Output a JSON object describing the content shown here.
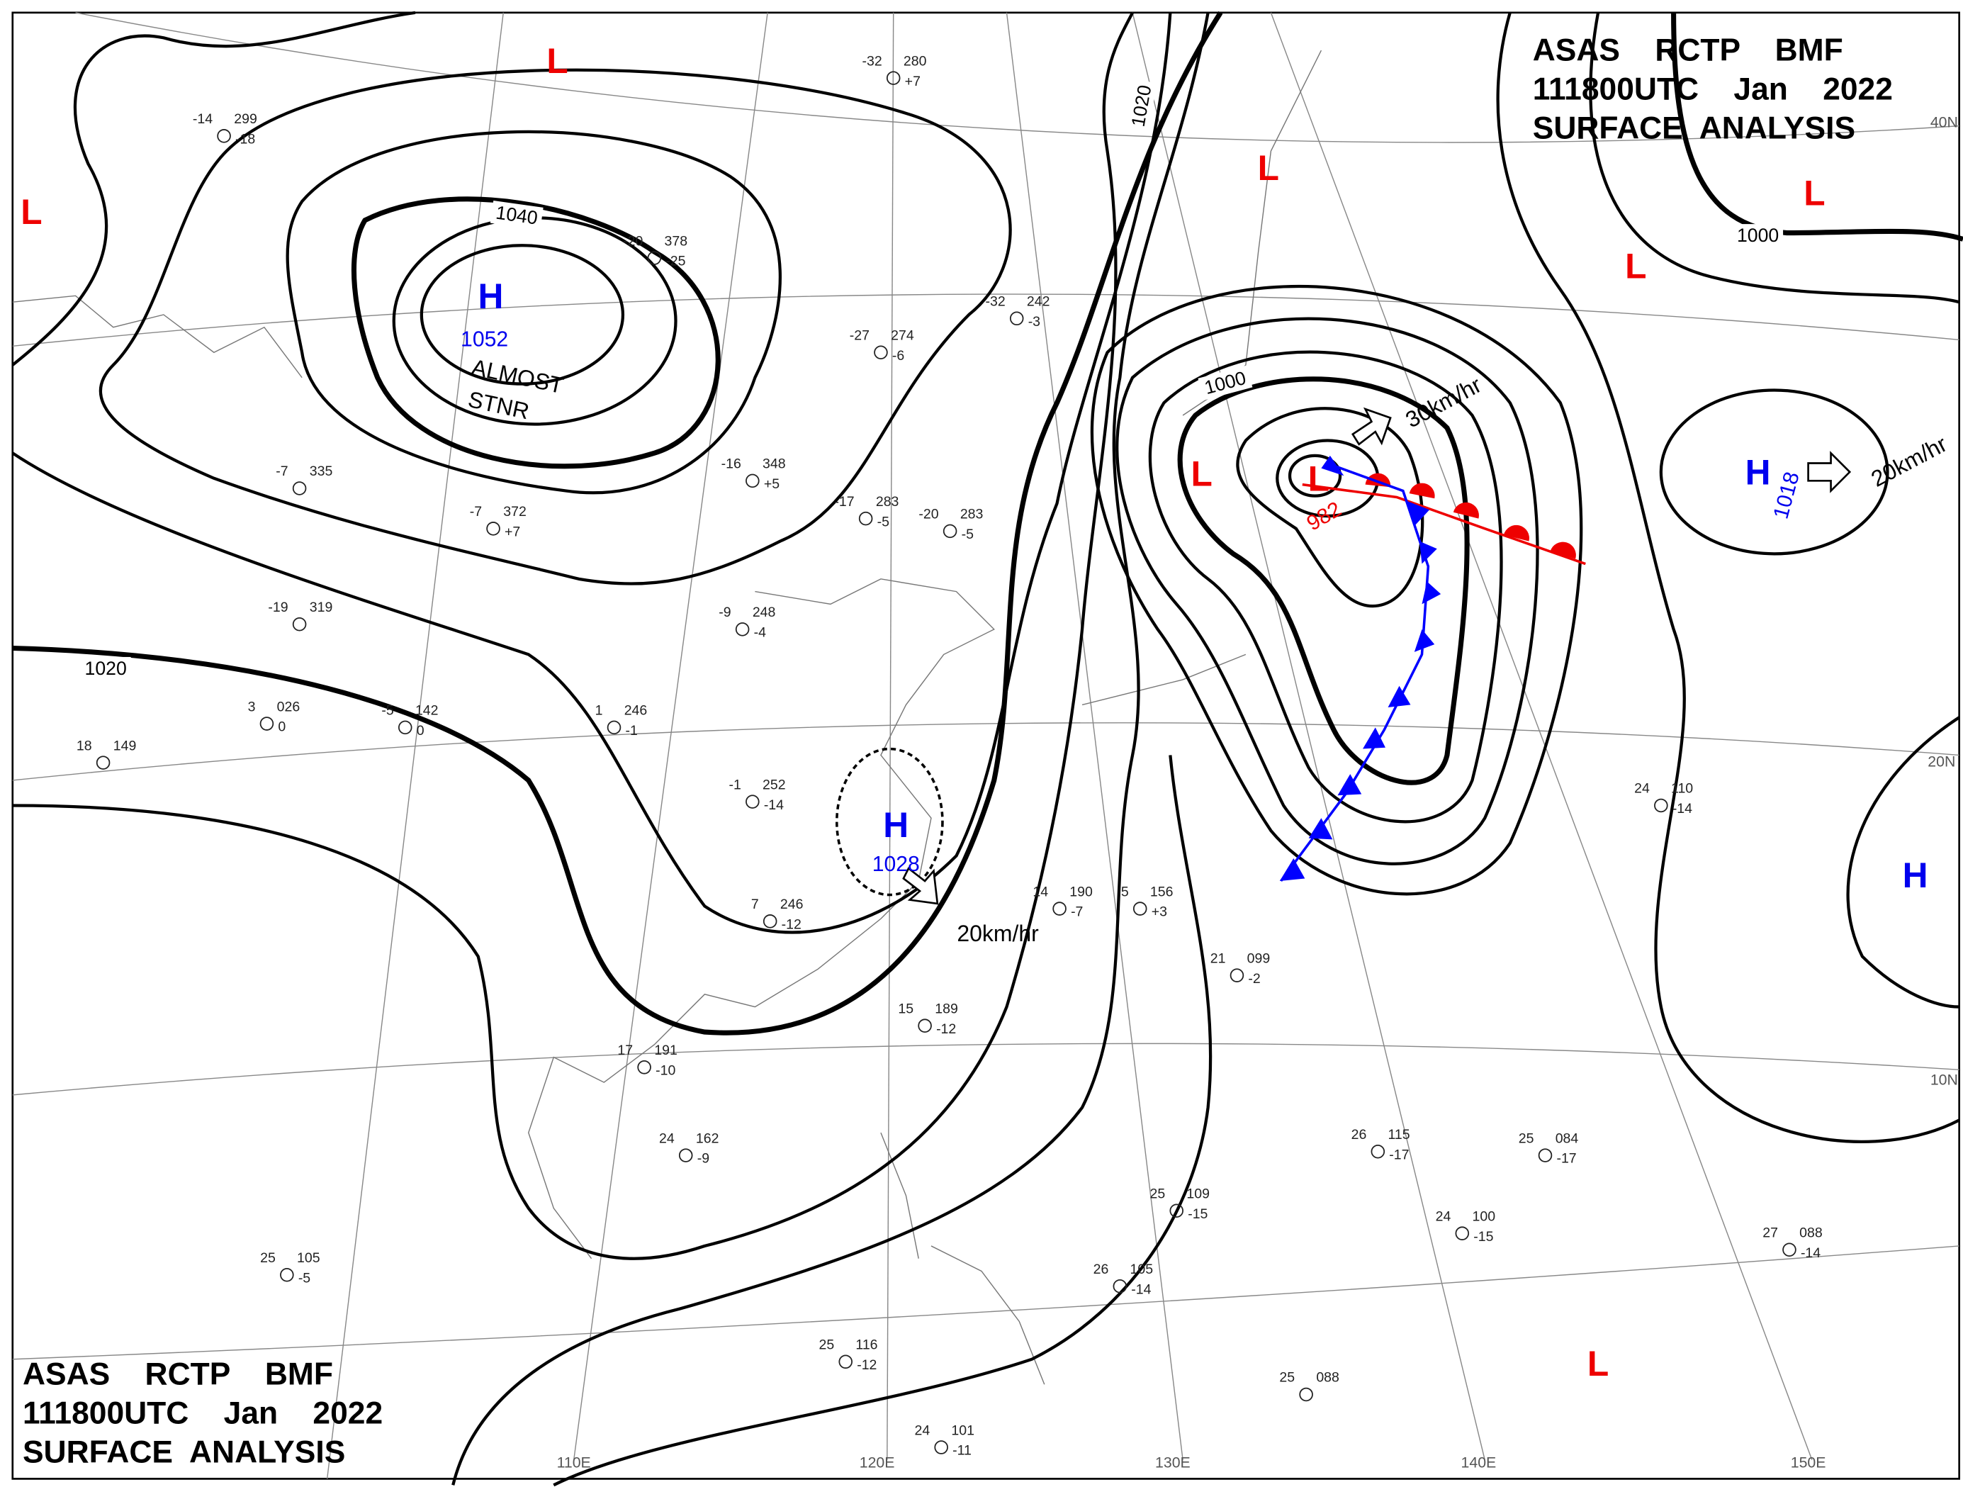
{
  "header": {
    "line1": "ASAS    RCTP    BMF",
    "line2": "111800UTC    Jan    2022",
    "line3": "SURFACE  ANALYSIS"
  },
  "systems": [
    {
      "mark": "H",
      "pressure": "1052"
    },
    {
      "mark": "H",
      "pressure": "1028"
    },
    {
      "mark": "L",
      "pressure": "982"
    },
    {
      "mark": "H",
      "pressure": "1018"
    },
    {
      "mark": "H"
    },
    {
      "mark": "L"
    },
    {
      "mark": "L"
    },
    {
      "mark": "L"
    },
    {
      "mark": "L"
    },
    {
      "mark": "L"
    },
    {
      "mark": "L"
    },
    {
      "mark": "L"
    }
  ],
  "notes": [
    "ALMOST",
    "STNR"
  ],
  "motion": [
    "30km/hr",
    "20km/hr",
    "20km/hr"
  ],
  "isobar_labels": [
    "1040",
    "1020",
    "1020",
    "1000",
    "1000"
  ],
  "longitudes": [
    "110E",
    "120E",
    "130E",
    "140E",
    "150E"
  ],
  "latitudes": [
    "40N",
    "20N",
    "10N"
  ],
  "stations": [
    {
      "t": "-14",
      "p": "299",
      "d": "-18"
    },
    {
      "t": "-32",
      "p": "280",
      "d": "+7"
    },
    {
      "t": "-20",
      "p": "378",
      "d": "-25"
    },
    {
      "t": "-32",
      "p": "242",
      "d": "-3"
    },
    {
      "t": "-27",
      "p": "274",
      "d": "-6"
    },
    {
      "t": "-16",
      "p": "348",
      "d": "+5"
    },
    {
      "t": "-7",
      "p": "372",
      "d": "+7"
    },
    {
      "t": "-17",
      "p": "283",
      "d": "-5"
    },
    {
      "t": "-20",
      "p": "283",
      "d": "-5"
    },
    {
      "t": "-9",
      "p": "248",
      "d": "-4"
    },
    {
      "t": "1",
      "p": "246",
      "d": "-1"
    },
    {
      "t": "-1",
      "p": "252",
      "d": "-14"
    },
    {
      "t": "7",
      "p": "246",
      "d": "-12"
    },
    {
      "t": "15",
      "p": "189",
      "d": "-12"
    },
    {
      "t": "17",
      "p": "191",
      "d": "-10"
    },
    {
      "t": "24",
      "p": "162",
      "d": "-9"
    },
    {
      "t": "25",
      "p": "105",
      "d": "-5"
    },
    {
      "t": "25",
      "p": "116",
      "d": "-12"
    },
    {
      "t": "24",
      "p": "101",
      "d": "-11"
    },
    {
      "t": "26",
      "p": "115",
      "d": "-17"
    },
    {
      "t": "25",
      "p": "084",
      "d": "-17"
    },
    {
      "t": "24",
      "p": "100",
      "d": "-15"
    },
    {
      "t": "25",
      "p": "109",
      "d": "-15"
    },
    {
      "t": "26",
      "p": "105",
      "d": "-14"
    },
    {
      "t": "27",
      "p": "088",
      "d": "-14"
    },
    {
      "t": "24",
      "p": "110",
      "d": "-14"
    },
    {
      "t": "25",
      "p": "088"
    },
    {
      "t": "21",
      "p": "099",
      "d": "-2"
    },
    {
      "t": "14",
      "p": "190",
      "d": "-7"
    },
    {
      "t": "5",
      "p": "156",
      "d": "+3"
    },
    {
      "t": "18",
      "p": "149"
    },
    {
      "t": "3",
      "p": "026",
      "d": "0"
    },
    {
      "t": "-5",
      "p": "142",
      "d": "0"
    },
    {
      "t": "-19",
      "p": "319"
    },
    {
      "t": "-7",
      "p": "335"
    }
  ]
}
